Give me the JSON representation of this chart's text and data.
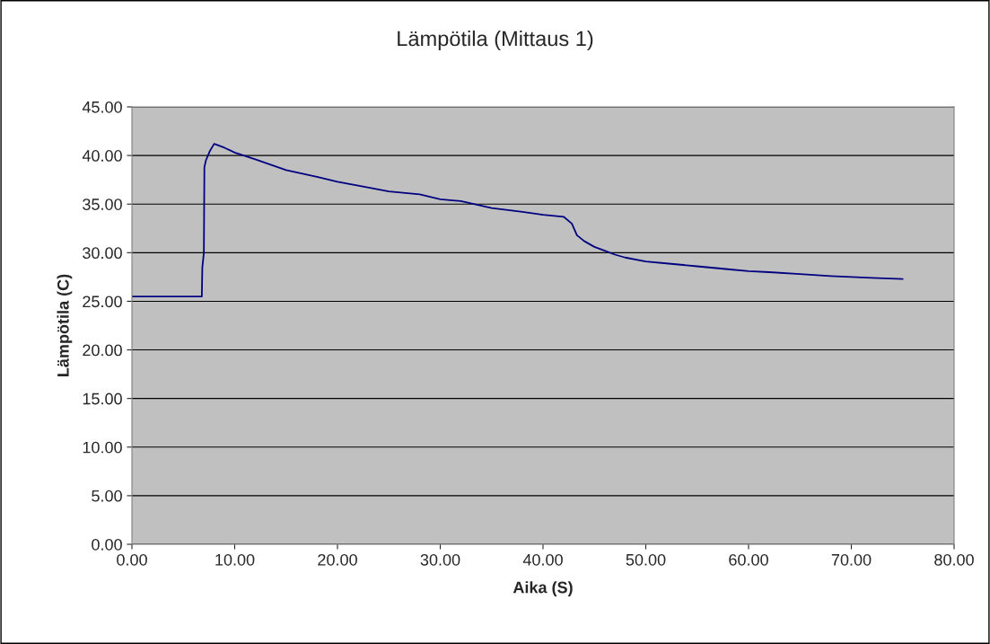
{
  "chart_data": {
    "type": "line",
    "title": "Lämpötila (Mittaus 1)",
    "xlabel": "Aika (S)",
    "ylabel": "Lämpötila (C)",
    "series": [
      {
        "color": "#000080",
        "x": [
          0,
          2,
          4,
          6.8,
          6.85,
          7.0,
          7.05,
          7.2,
          7.6,
          8.0,
          9.0,
          10,
          12,
          15,
          18,
          20,
          22,
          25,
          28,
          30,
          32,
          35,
          38,
          40,
          42,
          42.8,
          43.3,
          44,
          45,
          46,
          47,
          48,
          50,
          52,
          55,
          58,
          60,
          62,
          65,
          68,
          70,
          72,
          75
        ],
        "values": [
          25.5,
          25.5,
          25.5,
          25.5,
          28.5,
          30.0,
          38.8,
          39.5,
          40.5,
          41.2,
          40.8,
          40.3,
          39.6,
          38.5,
          37.8,
          37.3,
          36.9,
          36.3,
          36.0,
          35.5,
          35.3,
          34.6,
          34.2,
          33.9,
          33.7,
          33.0,
          31.8,
          31.2,
          30.6,
          30.2,
          29.8,
          29.5,
          29.1,
          28.9,
          28.6,
          28.3,
          28.1,
          28.0,
          27.8,
          27.6,
          27.5,
          27.4,
          27.3
        ]
      }
    ],
    "xlim": [
      0,
      80
    ],
    "xticks": [
      {
        "value": 0,
        "label": "0.00"
      },
      {
        "value": 10,
        "label": "10.00"
      },
      {
        "value": 20,
        "label": "20.00"
      },
      {
        "value": 30,
        "label": "30.00"
      },
      {
        "value": 40,
        "label": "40.00"
      },
      {
        "value": 50,
        "label": "50.00"
      },
      {
        "value": 60,
        "label": "60.00"
      },
      {
        "value": 70,
        "label": "70.00"
      },
      {
        "value": 80,
        "label": "80.00"
      }
    ],
    "ylim": [
      0,
      45
    ],
    "yticks": [
      {
        "value": 0,
        "label": "0.00"
      },
      {
        "value": 5,
        "label": "5.00"
      },
      {
        "value": 10,
        "label": "10.00"
      },
      {
        "value": 15,
        "label": "15.00"
      },
      {
        "value": 20,
        "label": "20.00"
      },
      {
        "value": 25,
        "label": "25.00"
      },
      {
        "value": 30,
        "label": "30.00"
      },
      {
        "value": 35,
        "label": "35.00"
      },
      {
        "value": 40,
        "label": "40.00"
      },
      {
        "value": 45,
        "label": "45.00"
      }
    ],
    "grid": "y",
    "marker": "none",
    "line_style": "solid"
  }
}
